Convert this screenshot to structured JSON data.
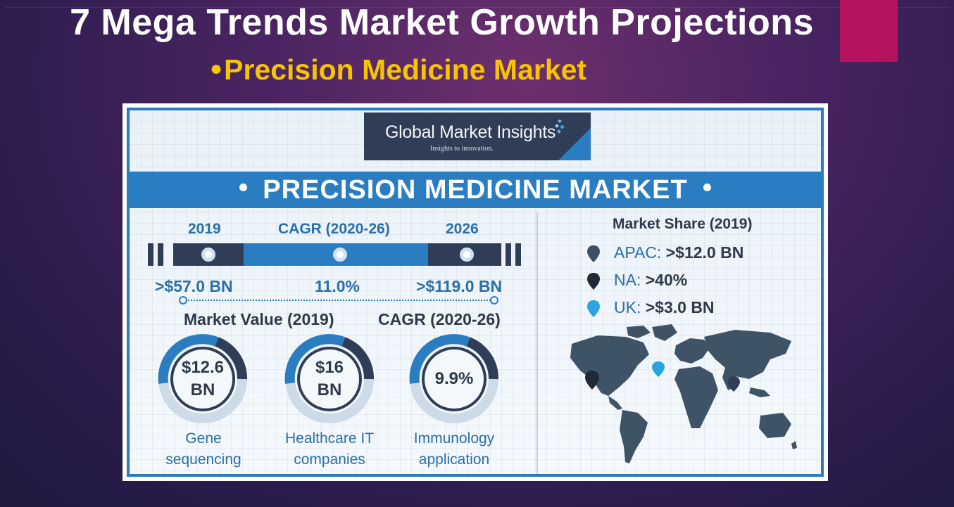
{
  "slide": {
    "title": "7 Mega Trends Market Growth Projections",
    "subtitle_bullet": "●",
    "subtitle": "Precision Medicine Market",
    "accent_color": "#b5135f"
  },
  "infographic": {
    "logo": {
      "name": "Global Market Insights",
      "tagline": "Insights to innovation."
    },
    "banner_title": "PRECISION MEDICINE MARKET",
    "timeline": {
      "labels": [
        "2019",
        "CAGR (2020-26)",
        "2026"
      ],
      "values": [
        ">$57.0 BN",
        "11.0%",
        ">$119.0 BN"
      ]
    },
    "section_heads": {
      "market_value": "Market Value (2019)",
      "cagr": "CAGR (2020-26)"
    },
    "rings": [
      {
        "line1": "$12.6",
        "line2": "BN",
        "cap1": "Gene",
        "cap2": "sequencing"
      },
      {
        "line1": "$16",
        "line2": "BN",
        "cap1": "Healthcare IT",
        "cap2": "companies"
      },
      {
        "line1": "9.9%",
        "line2": "",
        "cap1": "Immunology",
        "cap2": "application"
      }
    ],
    "market_share": {
      "title": "Market Share (2019)",
      "items": [
        {
          "region": "APAC:",
          "value": ">$12.0 BN",
          "color": "#3c4f63"
        },
        {
          "region": "NA:",
          "value": ">40%",
          "color": "#1f2a36"
        },
        {
          "region": "UK:",
          "value": ">$3.0 BN",
          "color": "#2aa4e0"
        }
      ]
    },
    "colors": {
      "primary_blue": "#2a7dc0",
      "dark_navy": "#2f3e56",
      "text_dark": "#2e3a4a"
    }
  }
}
